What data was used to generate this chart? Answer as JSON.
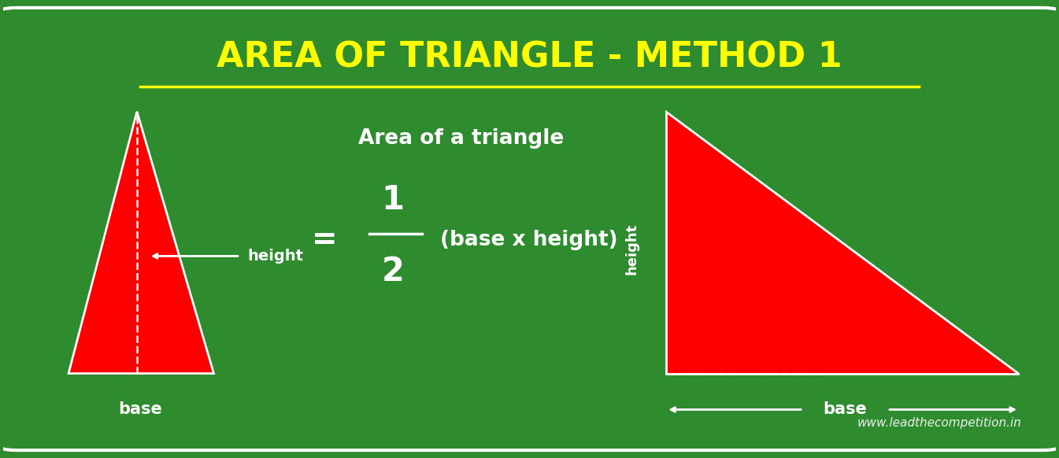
{
  "bg_color": "#2e8b2e",
  "title": "AREA OF TRIANGLE - METHOD 1",
  "title_color": "#ffff00",
  "title_fontsize": 32,
  "triangle_color": "#ff0000",
  "triangle_edge_color": "#ffffff",
  "formula_text1": "Area of a triangle",
  "formula_text2": "(base x height)",
  "white_color": "#ffffff",
  "dashed_line_color": "#ffffff",
  "watermark": "www.leadthecompetition.in",
  "border_color": "#ffffff"
}
